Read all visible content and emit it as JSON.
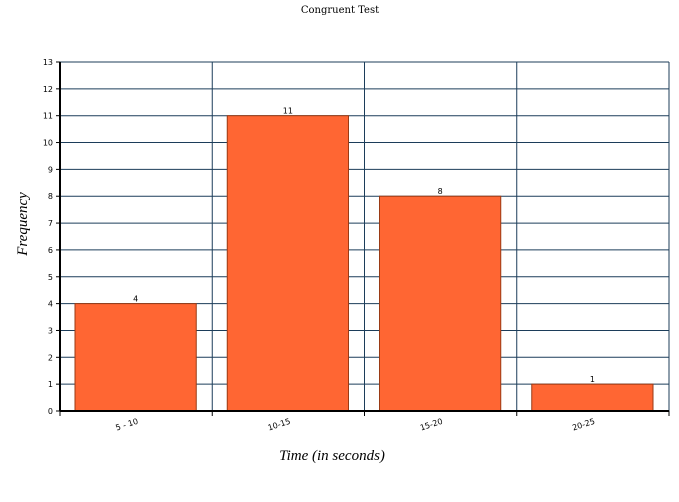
{
  "chart_data": {
    "type": "bar",
    "title": "Congruent Test",
    "xlabel": "Time (in seconds)",
    "ylabel": "Frequency",
    "categories": [
      "5 - 10",
      "10-15",
      "15-20",
      "20-25"
    ],
    "values": [
      4,
      11,
      8,
      1
    ],
    "ylim": [
      0,
      13
    ],
    "yticks": [
      "0",
      "1",
      "2",
      "3",
      "4",
      "5",
      "6",
      "7",
      "8",
      "9",
      "10",
      "11",
      "12",
      "13"
    ],
    "grid": true,
    "legend": "none",
    "colors": {
      "bar": "#ff6633",
      "bar_border": "#9a3a14",
      "grid": "#1c3d5a",
      "axis": "#000000"
    }
  }
}
